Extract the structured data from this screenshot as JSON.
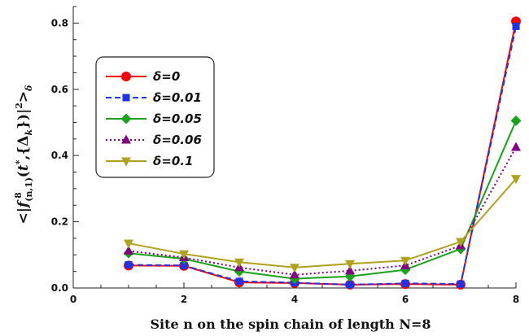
{
  "chart_data": {
    "type": "line",
    "title": "",
    "xlabel": "Site n on the spin chain of length N=8",
    "ylabel": "<|f^8_(n,1)(t*,{Δ_k})|²>_δ",
    "xlim": [
      0,
      8
    ],
    "ylim": [
      0,
      0.85
    ],
    "xticks": [
      0,
      2,
      4,
      6,
      8
    ],
    "xtick_labels": [
      "0",
      "2",
      "4",
      "6",
      "8"
    ],
    "yticks": [
      0,
      0.2,
      0.4,
      0.6,
      0.8
    ],
    "ytick_labels": [
      "0.0",
      "0.2",
      "0.4",
      "0.6",
      "0.8"
    ],
    "grid": false,
    "legend_position": "top-left",
    "x": [
      1,
      2,
      3,
      4,
      5,
      6,
      7,
      8
    ],
    "series": [
      {
        "name": "δ=0",
        "color": "#ff0000",
        "marker": "circle",
        "dash": "solid",
        "values": [
          0.068,
          0.067,
          0.017,
          0.015,
          0.01,
          0.012,
          0.01,
          0.805
        ]
      },
      {
        "name": "δ=0.01",
        "color": "#1f33e6",
        "marker": "square",
        "dash": "dashed",
        "values": [
          0.07,
          0.068,
          0.02,
          0.016,
          0.01,
          0.014,
          0.012,
          0.79
        ]
      },
      {
        "name": "δ=0.05",
        "color": "#1aa31a",
        "marker": "diamond",
        "dash": "solid",
        "values": [
          0.105,
          0.088,
          0.05,
          0.028,
          0.035,
          0.055,
          0.118,
          0.505
        ]
      },
      {
        "name": "δ=0.06",
        "color": "#800080",
        "marker": "triangle-up",
        "dash": "dotted",
        "values": [
          0.112,
          0.092,
          0.062,
          0.04,
          0.052,
          0.068,
          0.128,
          0.425
        ]
      },
      {
        "name": "δ=0.1",
        "color": "#b0a21e",
        "marker": "triangle-down",
        "dash": "solid",
        "values": [
          0.135,
          0.103,
          0.078,
          0.062,
          0.073,
          0.083,
          0.14,
          0.33
        ]
      }
    ]
  }
}
